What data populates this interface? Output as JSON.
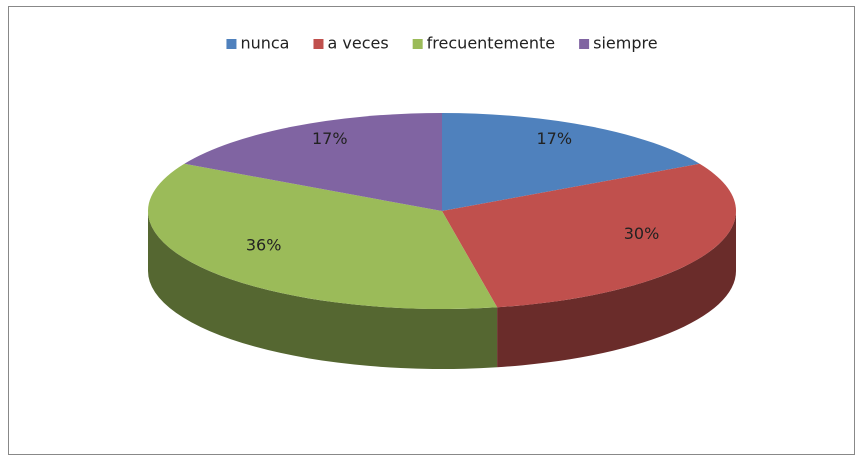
{
  "chart_data": {
    "type": "pie",
    "three_d": true,
    "categories": [
      "nunca",
      "a veces",
      "frecuentemente",
      "siempre"
    ],
    "values": [
      17,
      30,
      36,
      17
    ],
    "value_labels": [
      "17%",
      "30%",
      "36%",
      "17%"
    ],
    "colors": [
      "#4f81bd",
      "#c0504d",
      "#9bbb59",
      "#8064a2"
    ],
    "legend": "top"
  }
}
